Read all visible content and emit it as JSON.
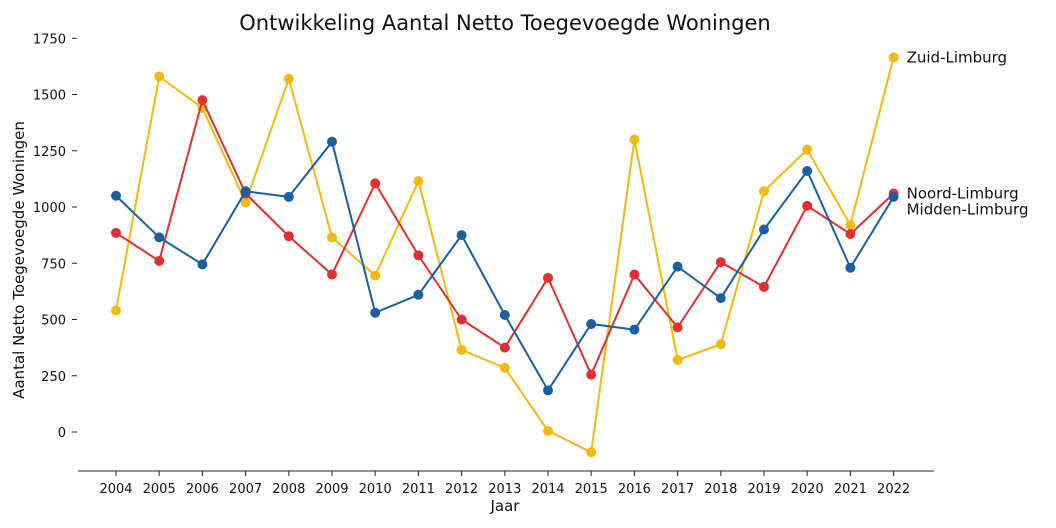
{
  "chart_data": {
    "type": "line",
    "title": "Ontwikkeling Aantal Netto Toegevoegde Woningen",
    "xlabel": "Jaar",
    "ylabel": "Aantal Netto Toegevoegde Woningen",
    "x": [
      "2004",
      "2005",
      "2006",
      "2007",
      "2008",
      "2009",
      "2010",
      "2011",
      "2012",
      "2013",
      "2014",
      "2015",
      "2016",
      "2017",
      "2018",
      "2019",
      "2020",
      "2021",
      "2022"
    ],
    "yticks": [
      0,
      250,
      500,
      750,
      1000,
      1250,
      1500,
      1750
    ],
    "ytick_labels": [
      "0",
      "250",
      "500",
      "750",
      "1000",
      "1250",
      "1500",
      "1750"
    ],
    "ylim": [
      -120,
      1800
    ],
    "grid": false,
    "legend": "labels at line ends (right)",
    "series": [
      {
        "name": "Zuid-Limburg",
        "color": "#f2b90f",
        "values": [
          540,
          1580,
          1440,
          1020,
          1570,
          865,
          695,
          1115,
          365,
          285,
          5,
          -90,
          1300,
          320,
          390,
          1070,
          1255,
          920,
          1665
        ]
      },
      {
        "name": "Noord-Limburg",
        "color": "#e03030",
        "values": [
          885,
          760,
          1475,
          1060,
          870,
          700,
          1105,
          785,
          500,
          375,
          685,
          255,
          700,
          465,
          755,
          645,
          1005,
          880,
          1060
        ]
      },
      {
        "name": "Midden-Limburg",
        "color": "#1a5fa0",
        "values": [
          1050,
          865,
          745,
          1070,
          1045,
          1290,
          530,
          610,
          875,
          520,
          185,
          480,
          455,
          735,
          595,
          900,
          1160,
          730,
          1045
        ]
      }
    ]
  }
}
